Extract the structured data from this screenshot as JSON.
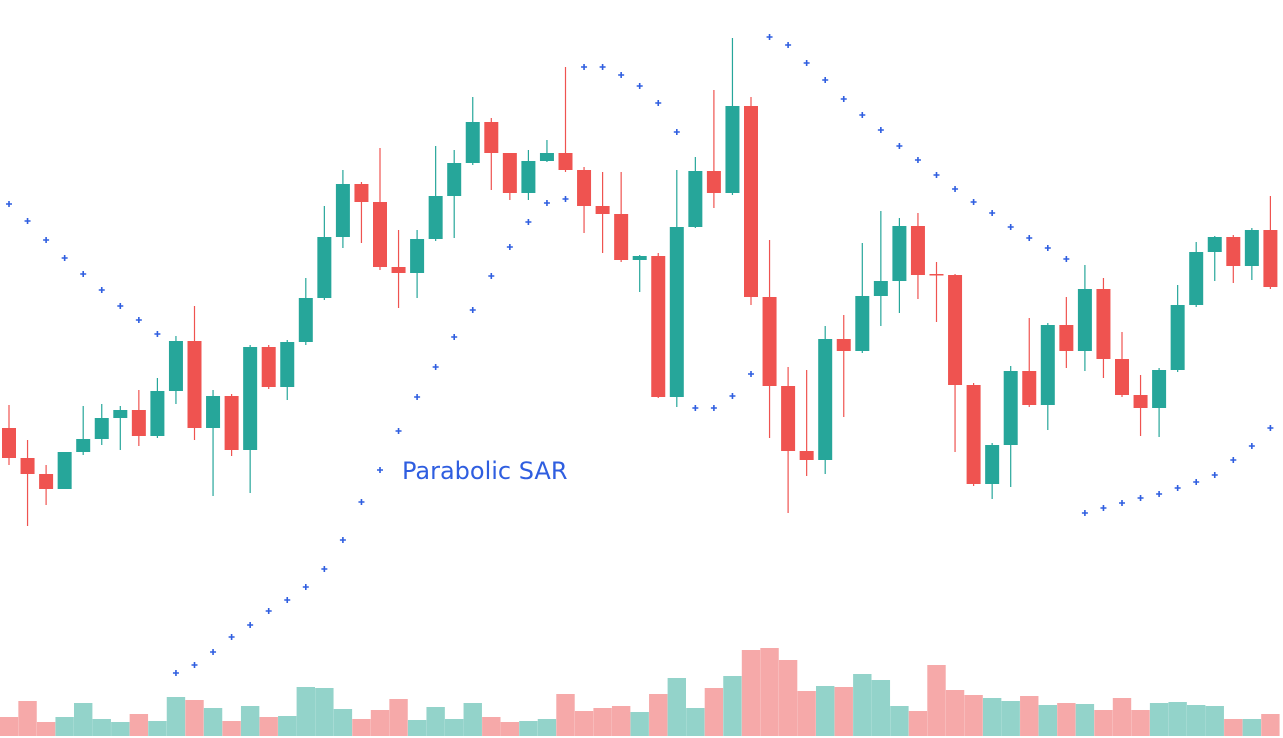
{
  "chart_data": {
    "type": "candlestick",
    "annotation": "Parabolic SAR",
    "up_color": "#26a69a",
    "down_color": "#ef5350",
    "volume_up_color": "#93d3ca",
    "volume_down_color": "#f6a9a9",
    "sar_color": "#2f5ee0",
    "open": [
      310,
      280,
      264,
      249,
      286,
      299,
      320,
      328,
      302,
      347,
      397,
      310,
      342,
      288,
      391,
      351,
      396,
      440,
      501,
      554,
      536,
      471,
      465,
      499,
      542,
      575,
      616,
      585,
      545,
      577,
      585,
      568,
      532,
      524,
      478,
      482,
      341,
      511,
      567,
      545,
      632,
      441,
      352,
      287,
      278,
      399,
      387,
      442,
      457,
      512,
      464,
      463,
      353,
      254,
      293,
      367,
      333,
      413,
      387,
      449,
      379,
      343,
      330,
      368,
      433,
      486,
      501,
      472,
      508
    ],
    "high": [
      333,
      298,
      273,
      286,
      332,
      334,
      332,
      348,
      360,
      402,
      432,
      348,
      344,
      393,
      393,
      398,
      460,
      532,
      568,
      556,
      590,
      508,
      508,
      592,
      588,
      641,
      620,
      583,
      588,
      598,
      671,
      571,
      566,
      566,
      483,
      485,
      568,
      581,
      648,
      700,
      641,
      498,
      371,
      368,
      412,
      423,
      495,
      527,
      520,
      525,
      476,
      464,
      355,
      295,
      372,
      420,
      415,
      441,
      473,
      460,
      406,
      363,
      370,
      453,
      496,
      502,
      503,
      510,
      542
    ],
    "low": [
      273,
      212,
      233,
      249,
      283,
      293,
      288,
      292,
      300,
      334,
      298,
      242,
      282,
      245,
      349,
      338,
      393,
      438,
      490,
      495,
      468,
      430,
      440,
      497,
      500,
      573,
      548,
      538,
      538,
      576,
      566,
      505,
      485,
      476,
      446,
      340,
      331,
      510,
      530,
      543,
      433,
      300,
      225,
      262,
      264,
      321,
      385,
      412,
      425,
      439,
      416,
      286,
      252,
      239,
      251,
      331,
      308,
      370,
      367,
      360,
      341,
      302,
      301,
      366,
      431,
      457,
      455,
      458,
      449
    ],
    "close": [
      280,
      264,
      249,
      286,
      299,
      320,
      328,
      302,
      347,
      397,
      310,
      342,
      288,
      391,
      351,
      396,
      440,
      501,
      554,
      536,
      471,
      465,
      499,
      542,
      575,
      616,
      585,
      545,
      577,
      585,
      568,
      532,
      524,
      478,
      482,
      341,
      511,
      567,
      545,
      632,
      441,
      352,
      287,
      278,
      399,
      387,
      442,
      457,
      512,
      463,
      463,
      353,
      254,
      293,
      367,
      333,
      413,
      387,
      449,
      379,
      343,
      330,
      368,
      433,
      486,
      501,
      472,
      508,
      451
    ],
    "sar": [
      534,
      517,
      498,
      480,
      464,
      448,
      432,
      418,
      404,
      65,
      73,
      86,
      101,
      113,
      127,
      138,
      151,
      169,
      198,
      236,
      268,
      307,
      341,
      371,
      401,
      428,
      462,
      491,
      516,
      535,
      539,
      671,
      671,
      663,
      652,
      635,
      606,
      330,
      330,
      342,
      364,
      701,
      693,
      675,
      658,
      639,
      623,
      608,
      592,
      578,
      563,
      549,
      536,
      525,
      511,
      500,
      490,
      479,
      225,
      230,
      235,
      240,
      244,
      250,
      256,
      263,
      278,
      292,
      310
    ],
    "volume": [
      19,
      35,
      14,
      19,
      33,
      17,
      14,
      22,
      15,
      39,
      36,
      28,
      15,
      30,
      19,
      20,
      49,
      48,
      27,
      17,
      26,
      37,
      16,
      29,
      17,
      33,
      19,
      14,
      15,
      17,
      42,
      25,
      28,
      30,
      24,
      42,
      58,
      28,
      48,
      60,
      86,
      88,
      76,
      45,
      50,
      49,
      62,
      56,
      30,
      25,
      71,
      46,
      41,
      38,
      35,
      40,
      31,
      33,
      32,
      26,
      38,
      26,
      33,
      34,
      31,
      30,
      17,
      17,
      22
    ]
  }
}
